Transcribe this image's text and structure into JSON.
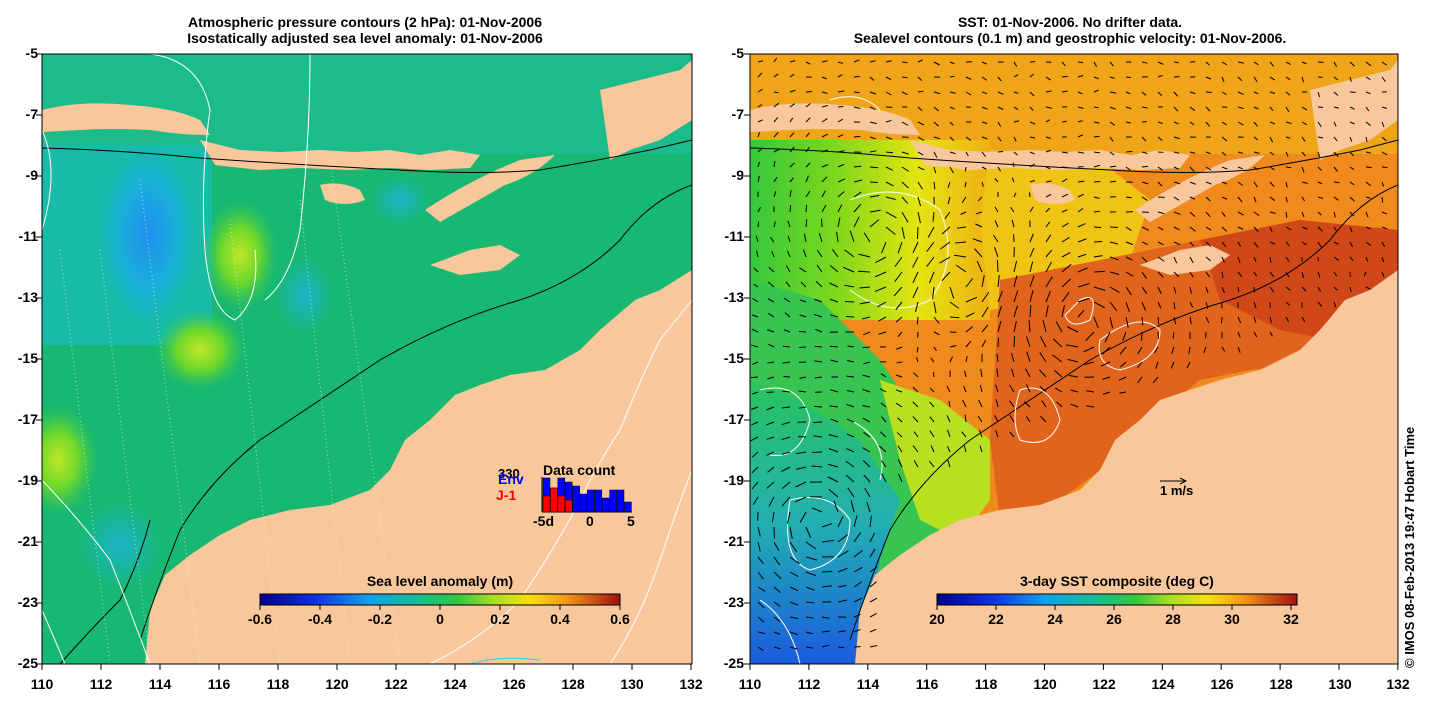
{
  "left_panel": {
    "title_line1": "Atmospheric pressure contours (2 hPa): 01-Nov-2006",
    "title_line2": "Isostatically adjusted sea level anomaly: 01-Nov-2006",
    "yticks": [
      "-5",
      "-7",
      "-9",
      "-11",
      "-13",
      "-15",
      "-17",
      "-19",
      "-21",
      "-23",
      "-25"
    ],
    "xticks": [
      "110",
      "112",
      "114",
      "116",
      "118",
      "120",
      "122",
      "124",
      "126",
      "128",
      "130",
      "132"
    ],
    "colorbar": {
      "title": "Sea level anomaly (m)",
      "ticks": [
        "-0.6",
        "-0.4",
        "-0.2",
        "0",
        "0.2",
        "0.4",
        "0.6"
      ]
    },
    "data_count": {
      "title": "Data count",
      "count": "330",
      "label_env": "Env",
      "label_j1": "J-1",
      "axis_ticks": [
        "-5d",
        "0",
        "5"
      ],
      "env_color": "#0000ff",
      "j1_color": "#ff0000"
    }
  },
  "right_panel": {
    "title_line1": "SST: 01-Nov-2006. No drifter data.",
    "title_line2": "Sealevel contours (0.1 m) and geostrophic velocity: 01-Nov-2006.",
    "yticks": [
      "-5",
      "-7",
      "-9",
      "-11",
      "-13",
      "-15",
      "-17",
      "-19",
      "-21",
      "-23",
      "-25"
    ],
    "xticks": [
      "110",
      "112",
      "114",
      "116",
      "118",
      "120",
      "122",
      "124",
      "126",
      "128",
      "130",
      "132"
    ],
    "colorbar": {
      "title": "3-day SST composite (deg C)",
      "ticks": [
        "20",
        "22",
        "24",
        "26",
        "28",
        "30",
        "32"
      ]
    },
    "velocity_scale": "1 m/s"
  },
  "credit": "© IMOS 08-Feb-2013 19:47 Hobart Time",
  "colors": {
    "land": "#f8c89c",
    "sea_green": "#1db86a",
    "sst_orange": "#f08a1c"
  }
}
